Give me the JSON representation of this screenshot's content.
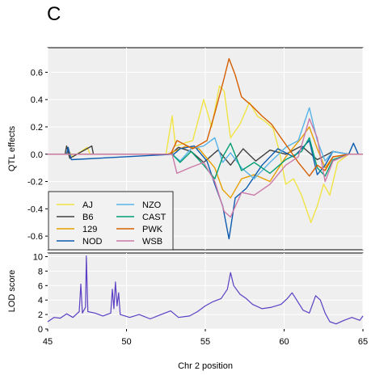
{
  "figure": {
    "panel_label": "C",
    "xlabel": "Chr 2 position"
  },
  "chart_data": [
    {
      "type": "line",
      "panel": "QTL effects",
      "ylabel": "QTL effects",
      "xlim": [
        45,
        65
      ],
      "ylim": [
        -0.7,
        0.78
      ],
      "yticks": [
        -0.6,
        -0.4,
        -0.2,
        0.0,
        0.2,
        0.4,
        0.6
      ],
      "ytick_labels": [
        "-0.6",
        "-0.4",
        "-0.2",
        "0.0",
        "0.2",
        "0.4",
        "0.6"
      ],
      "grid": true,
      "legend_position": "bottom-left",
      "series": [
        {
          "name": "AJ",
          "color": "#F0E442",
          "points": [
            [
              45,
              0
            ],
            [
              46.2,
              0
            ],
            [
              46.3,
              0.03
            ],
            [
              46.6,
              -0.02
            ],
            [
              47.5,
              0.05
            ],
            [
              47.7,
              0
            ],
            [
              52.5,
              0
            ],
            [
              52.9,
              0.28
            ],
            [
              53.1,
              0.06
            ],
            [
              54.2,
              0.1
            ],
            [
              54.9,
              0.4
            ],
            [
              55.4,
              0.2
            ],
            [
              55.9,
              0.5
            ],
            [
              56.2,
              0.46
            ],
            [
              56.6,
              0.12
            ],
            [
              57.2,
              0.22
            ],
            [
              57.8,
              0.38
            ],
            [
              58.3,
              0.28
            ],
            [
              58.8,
              0.24
            ],
            [
              59.3,
              0.19
            ],
            [
              59.7,
              0.02
            ],
            [
              60.1,
              -0.22
            ],
            [
              60.6,
              -0.18
            ],
            [
              61.1,
              -0.3
            ],
            [
              61.7,
              -0.5
            ],
            [
              62.1,
              -0.38
            ],
            [
              62.5,
              -0.22
            ],
            [
              62.9,
              -0.3
            ],
            [
              63.4,
              -0.06
            ],
            [
              64.1,
              0
            ],
            [
              65,
              0
            ]
          ]
        },
        {
          "name": "B6",
          "color": "#404040",
          "points": [
            [
              45,
              0
            ],
            [
              46.1,
              0
            ],
            [
              46.2,
              0.06
            ],
            [
              46.4,
              -0.03
            ],
            [
              47.8,
              0.06
            ],
            [
              47.9,
              0
            ],
            [
              52.8,
              0
            ],
            [
              53.3,
              0.05
            ],
            [
              54.1,
              0.02
            ],
            [
              54.9,
              -0.06
            ],
            [
              55.8,
              0.03
            ],
            [
              56.6,
              -0.08
            ],
            [
              57.4,
              0.04
            ],
            [
              58.2,
              -0.05
            ],
            [
              59.1,
              0.03
            ],
            [
              60.1,
              0
            ],
            [
              61.1,
              0.06
            ],
            [
              62.1,
              -0.04
            ],
            [
              63.1,
              0.02
            ],
            [
              64.1,
              0
            ],
            [
              65,
              0
            ]
          ]
        },
        {
          "name": "129",
          "color": "#E69F00",
          "points": [
            [
              45,
              0
            ],
            [
              52.6,
              0
            ],
            [
              53,
              0.02
            ],
            [
              53.8,
              0.06
            ],
            [
              54.6,
              0.04
            ],
            [
              55.6,
              -0.1
            ],
            [
              56.1,
              -0.26
            ],
            [
              56.6,
              -0.32
            ],
            [
              57.3,
              -0.18
            ],
            [
              58.1,
              -0.15
            ],
            [
              59.1,
              -0.2
            ],
            [
              60.1,
              -0.02
            ],
            [
              61.1,
              0.12
            ],
            [
              61.6,
              0.2
            ],
            [
              62.1,
              0.04
            ],
            [
              62.6,
              -0.1
            ],
            [
              63.1,
              -0.02
            ],
            [
              64.1,
              0
            ],
            [
              65,
              0
            ]
          ]
        },
        {
          "name": "NOD",
          "color": "#0C5BB0",
          "points": [
            [
              45,
              0
            ],
            [
              46.2,
              0
            ],
            [
              46.3,
              0.05
            ],
            [
              46.5,
              -0.04
            ],
            [
              53,
              0
            ],
            [
              53.4,
              0.04
            ],
            [
              54.3,
              0.06
            ],
            [
              55.1,
              -0.05
            ],
            [
              55.6,
              -0.22
            ],
            [
              56.1,
              -0.38
            ],
            [
              56.5,
              -0.62
            ],
            [
              56.9,
              -0.32
            ],
            [
              57.6,
              -0.25
            ],
            [
              58.6,
              -0.08
            ],
            [
              59.6,
              0.04
            ],
            [
              60.6,
              -0.02
            ],
            [
              61.6,
              0.1
            ],
            [
              62.1,
              -0.15
            ],
            [
              62.6,
              -0.08
            ],
            [
              63.1,
              0.02
            ],
            [
              64.1,
              0
            ],
            [
              64.4,
              0.08
            ],
            [
              64.7,
              0
            ],
            [
              65,
              0
            ]
          ]
        },
        {
          "name": "NZO",
          "color": "#56B4E9",
          "points": [
            [
              45,
              0
            ],
            [
              52.9,
              0
            ],
            [
              53.4,
              -0.05
            ],
            [
              54.1,
              0.04
            ],
            [
              54.9,
              0.06
            ],
            [
              55.6,
              0.12
            ],
            [
              56.1,
              -0.06
            ],
            [
              56.6,
              0.01
            ],
            [
              57.3,
              -0.1
            ],
            [
              58.1,
              -0.18
            ],
            [
              59.1,
              -0.06
            ],
            [
              60.1,
              0.05
            ],
            [
              60.9,
              0.1
            ],
            [
              61.6,
              0.34
            ],
            [
              62.1,
              0.1
            ],
            [
              62.6,
              -0.05
            ],
            [
              63.1,
              0.02
            ],
            [
              64.1,
              0
            ],
            [
              65,
              0
            ]
          ]
        },
        {
          "name": "CAST",
          "color": "#009E73",
          "points": [
            [
              45,
              0
            ],
            [
              52.9,
              0
            ],
            [
              53.4,
              -0.06
            ],
            [
              54.1,
              0.02
            ],
            [
              54.9,
              -0.08
            ],
            [
              55.6,
              -0.18
            ],
            [
              56.1,
              -0.02
            ],
            [
              56.6,
              0.08
            ],
            [
              57.3,
              -0.12
            ],
            [
              58.1,
              -0.06
            ],
            [
              59.1,
              -0.14
            ],
            [
              60.1,
              -0.04
            ],
            [
              61.1,
              0.02
            ],
            [
              61.6,
              0.12
            ],
            [
              62.1,
              -0.1
            ],
            [
              62.6,
              -0.16
            ],
            [
              63.1,
              -0.04
            ],
            [
              64.1,
              0
            ],
            [
              65,
              0
            ]
          ]
        },
        {
          "name": "PWK",
          "color": "#D55E00",
          "points": [
            [
              45,
              0
            ],
            [
              52.8,
              0
            ],
            [
              53.2,
              0.1
            ],
            [
              54.2,
              0.04
            ],
            [
              55.1,
              0.1
            ],
            [
              55.6,
              0.3
            ],
            [
              56.2,
              0.56
            ],
            [
              56.5,
              0.7
            ],
            [
              56.9,
              0.58
            ],
            [
              57.3,
              0.42
            ],
            [
              57.9,
              0.36
            ],
            [
              58.6,
              0.28
            ],
            [
              59.2,
              0.22
            ],
            [
              59.8,
              0.12
            ],
            [
              60.3,
              0.04
            ],
            [
              60.9,
              -0.06
            ],
            [
              61.6,
              -0.16
            ],
            [
              62.1,
              -0.08
            ],
            [
              62.6,
              -0.12
            ],
            [
              63.1,
              -0.02
            ],
            [
              64.1,
              0
            ],
            [
              65,
              0
            ]
          ]
        },
        {
          "name": "WSB",
          "color": "#CC79A7",
          "points": [
            [
              45,
              0
            ],
            [
              52.9,
              0
            ],
            [
              53.2,
              -0.14
            ],
            [
              54,
              -0.1
            ],
            [
              54.9,
              -0.06
            ],
            [
              55.6,
              -0.2
            ],
            [
              56.2,
              -0.42
            ],
            [
              56.6,
              -0.46
            ],
            [
              57.3,
              -0.28
            ],
            [
              58.1,
              -0.3
            ],
            [
              59.1,
              -0.22
            ],
            [
              60.1,
              -0.08
            ],
            [
              60.9,
              -0.02
            ],
            [
              61.6,
              0.26
            ],
            [
              62.1,
              0.12
            ],
            [
              62.6,
              -0.2
            ],
            [
              63.1,
              -0.05
            ],
            [
              64.1,
              0
            ],
            [
              65,
              0
            ]
          ]
        }
      ]
    },
    {
      "type": "line",
      "panel": "LOD score",
      "ylabel": "LOD score",
      "xlabel": "Chr 2 position",
      "xlim": [
        45,
        65
      ],
      "ylim": [
        0,
        10.5
      ],
      "xticks": [
        45,
        50,
        55,
        60,
        65
      ],
      "xtick_labels": [
        "45",
        "50",
        "55",
        "60",
        "65"
      ],
      "yticks": [
        0,
        2,
        4,
        6,
        8,
        10
      ],
      "ytick_labels": [
        "0",
        "2",
        "4",
        "6",
        "8",
        "10"
      ],
      "grid": true,
      "series": [
        {
          "color": "#5B3FC4",
          "points": [
            [
              45,
              1.0
            ],
            [
              45.4,
              1.6
            ],
            [
              45.8,
              1.5
            ],
            [
              46.2,
              2.1
            ],
            [
              46.6,
              1.6
            ],
            [
              47,
              2.4
            ],
            [
              47.1,
              6.2
            ],
            [
              47.2,
              2.2
            ],
            [
              47.4,
              3.0
            ],
            [
              47.45,
              10.1
            ],
            [
              47.55,
              2.4
            ],
            [
              48,
              2.2
            ],
            [
              48.5,
              1.8
            ],
            [
              49,
              2.2
            ],
            [
              49.1,
              5.5
            ],
            [
              49.2,
              2.8
            ],
            [
              49.3,
              6.5
            ],
            [
              49.4,
              3.2
            ],
            [
              49.5,
              5.0
            ],
            [
              49.6,
              2.0
            ],
            [
              50.2,
              1.6
            ],
            [
              50.8,
              2.0
            ],
            [
              51.5,
              1.4
            ],
            [
              52.2,
              2.0
            ],
            [
              52.8,
              2.5
            ],
            [
              53.3,
              1.6
            ],
            [
              54,
              1.8
            ],
            [
              54.5,
              2.4
            ],
            [
              55,
              3.2
            ],
            [
              55.5,
              3.8
            ],
            [
              56,
              4.2
            ],
            [
              56.4,
              5.5
            ],
            [
              56.6,
              7.8
            ],
            [
              56.8,
              6.0
            ],
            [
              57.2,
              4.8
            ],
            [
              57.6,
              4.2
            ],
            [
              58,
              3.4
            ],
            [
              58.6,
              2.8
            ],
            [
              59.2,
              3.0
            ],
            [
              59.8,
              3.4
            ],
            [
              60.2,
              4.2
            ],
            [
              60.5,
              5.0
            ],
            [
              60.8,
              4.0
            ],
            [
              61.2,
              2.6
            ],
            [
              61.6,
              2.2
            ],
            [
              62,
              4.6
            ],
            [
              62.3,
              4.0
            ],
            [
              62.6,
              2.2
            ],
            [
              62.9,
              1.0
            ],
            [
              63.3,
              0.7
            ],
            [
              63.8,
              1.2
            ],
            [
              64.3,
              1.6
            ],
            [
              64.8,
              1.2
            ],
            [
              65,
              1.8
            ]
          ]
        }
      ]
    }
  ]
}
